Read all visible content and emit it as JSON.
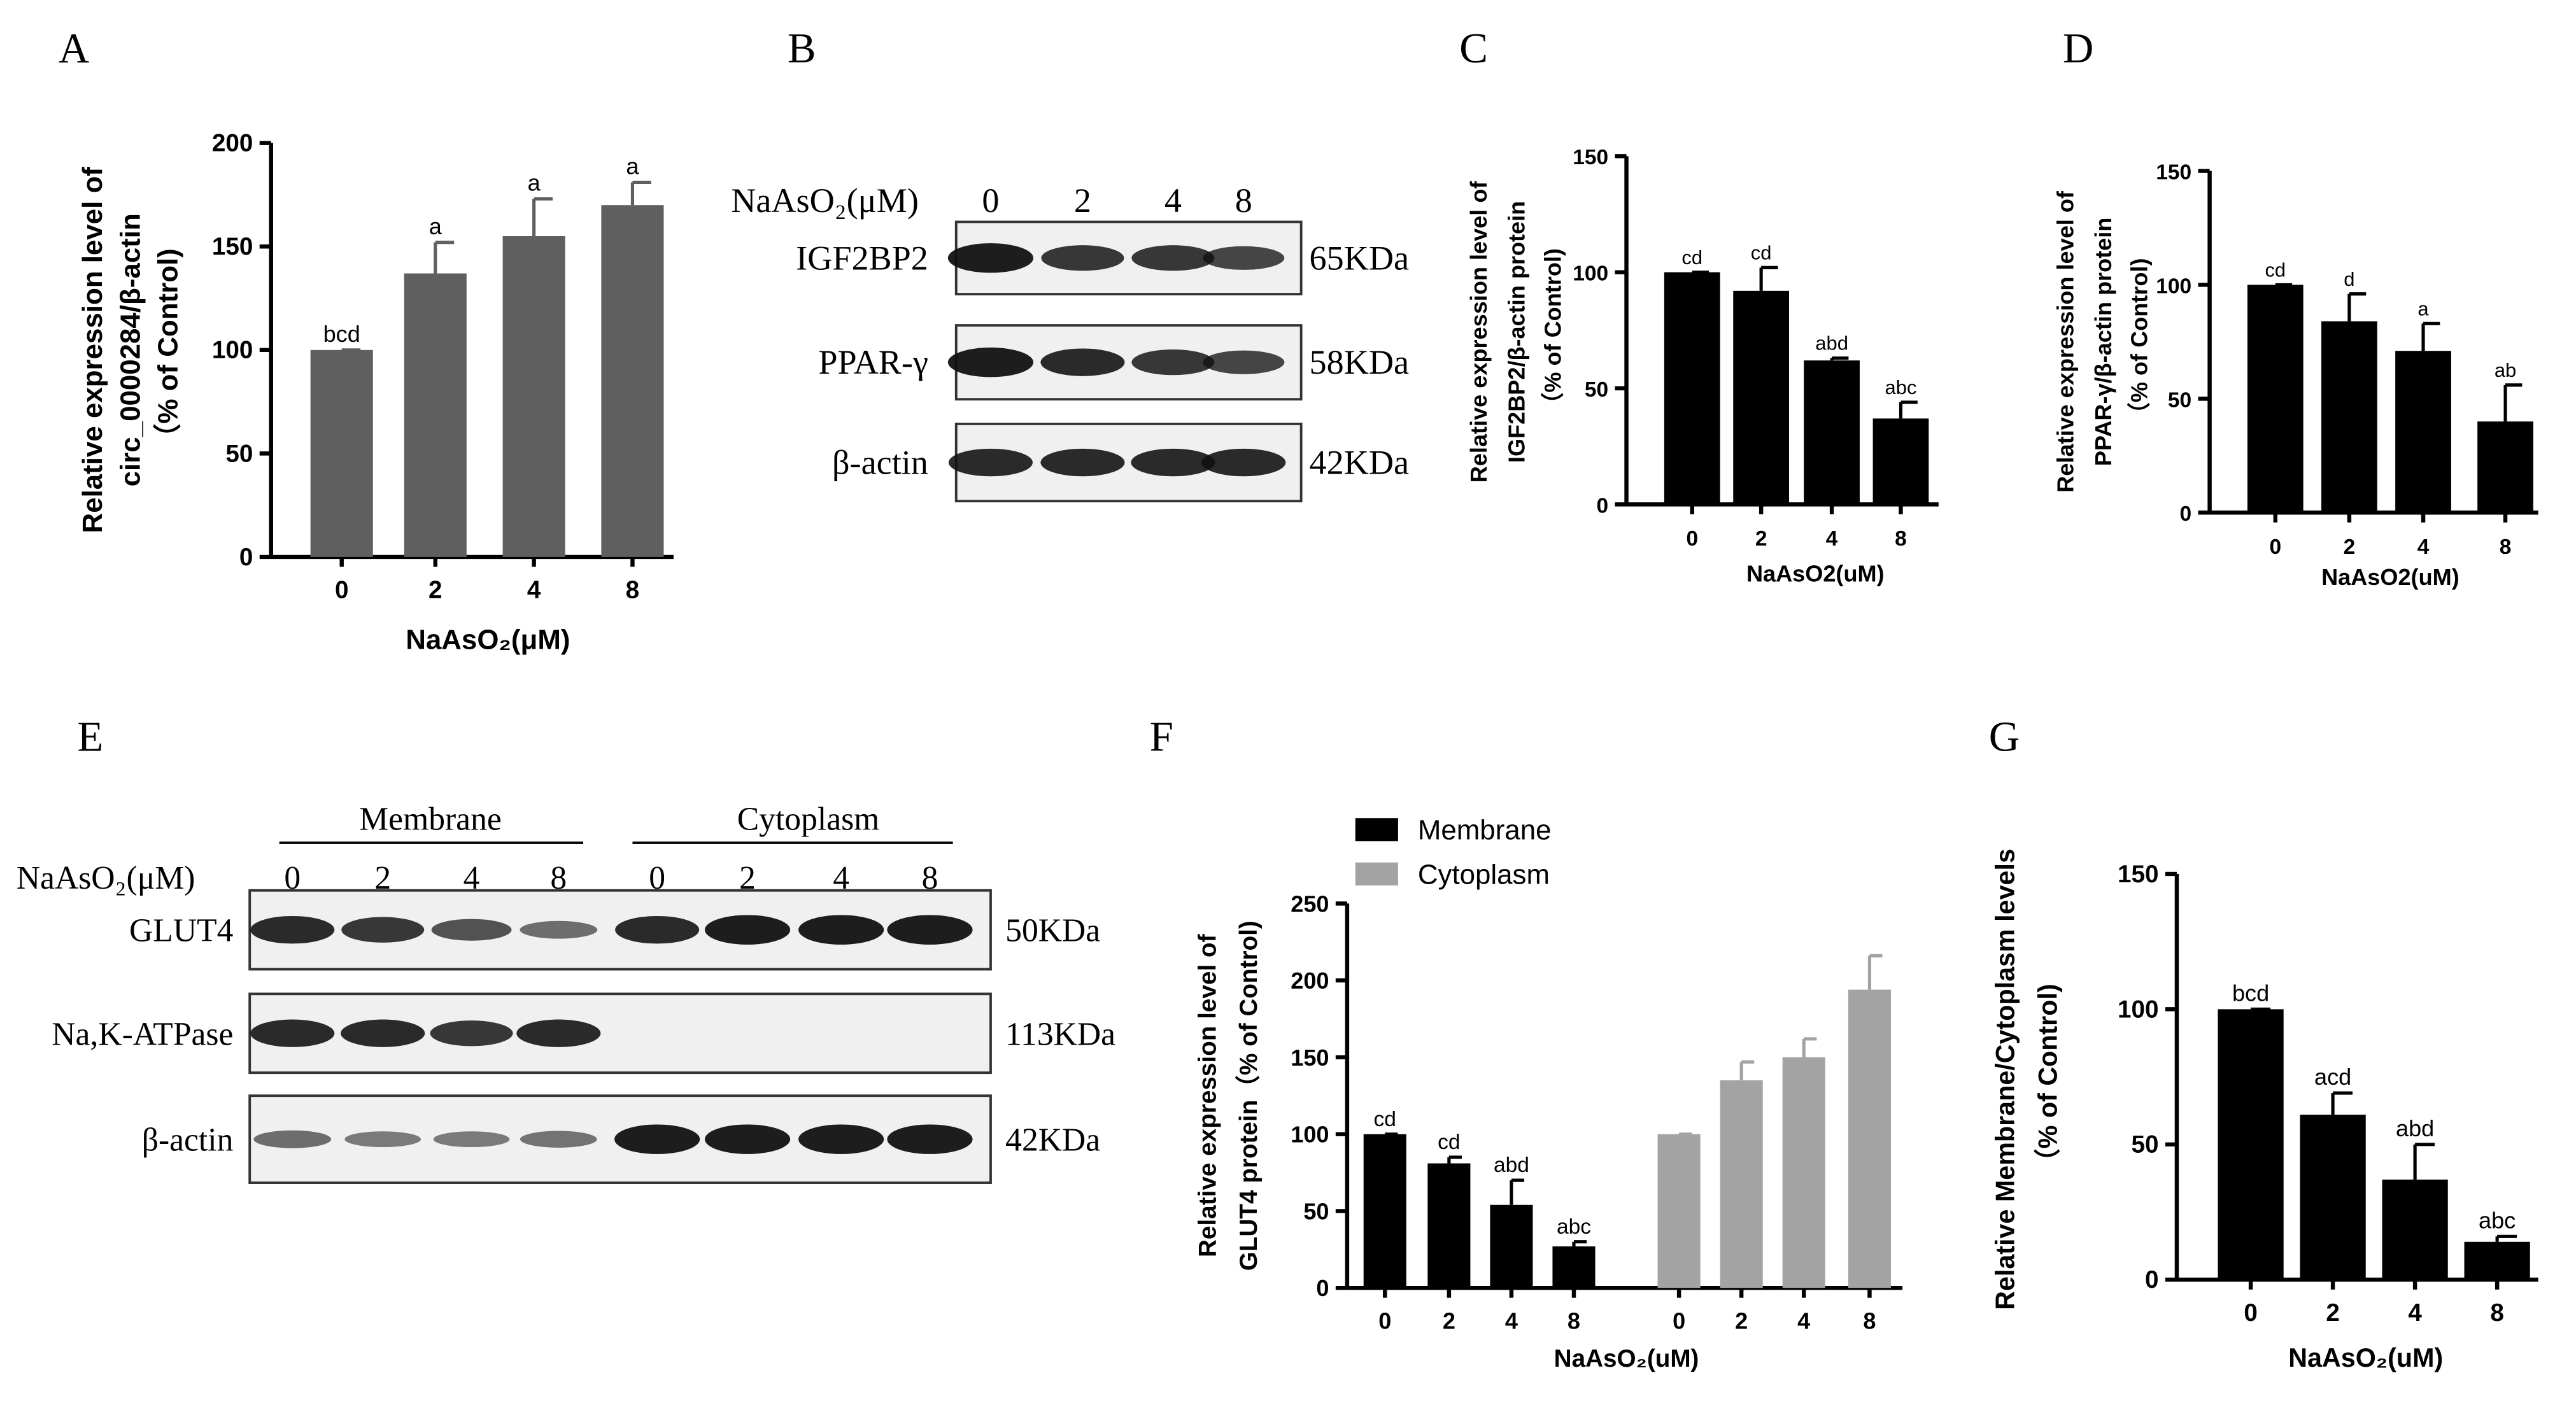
{
  "chart_data": [
    {
      "type": "bar",
      "panel_label": "A",
      "categories": [
        "0",
        "2",
        "4",
        "8"
      ],
      "values": [
        100,
        137,
        155,
        170
      ],
      "errors": [
        0,
        15,
        18,
        11
      ],
      "annotations": [
        "bcd",
        "a",
        "a",
        "a"
      ],
      "color": "#5f5f5f",
      "ylim": [
        0,
        200
      ],
      "yticks": [
        0,
        50,
        100,
        150,
        200
      ],
      "xlabel": "NaAsO₂(μM)",
      "ylabel": [
        "Relative expression level of",
        "circ_0000284/β-actin",
        "（% of Control)"
      ]
    },
    {
      "type": "bar",
      "panel_label": "C",
      "categories": [
        "0",
        "2",
        "4",
        "8"
      ],
      "values": [
        100,
        92,
        62,
        37
      ],
      "errors": [
        0,
        10,
        1,
        7
      ],
      "annotations": [
        "cd",
        "cd",
        "abd",
        "abc"
      ],
      "color": "#000000",
      "ylim": [
        0,
        150
      ],
      "yticks": [
        0,
        50,
        100,
        150
      ],
      "xlabel": "NaAsO2(uM)",
      "ylabel": [
        "Relative expression level of",
        "IGF2BP2/β-actin protein",
        "（% of Control)"
      ]
    },
    {
      "type": "bar",
      "panel_label": "D",
      "categories": [
        "0",
        "2",
        "4",
        "8"
      ],
      "values": [
        100,
        84,
        71,
        40
      ],
      "errors": [
        0,
        12,
        12,
        16
      ],
      "annotations": [
        "cd",
        "d",
        "a",
        "ab"
      ],
      "color": "#000000",
      "ylim": [
        0,
        150
      ],
      "yticks": [
        0,
        50,
        100,
        150
      ],
      "xlabel": "NaAsO2(uM)",
      "ylabel": [
        "Relative expression level of",
        "PPAR-γ/β-actin protein",
        "（% of Control)"
      ]
    },
    {
      "type": "bar",
      "panel_label": "F",
      "categories": [
        "0",
        "2",
        "4",
        "8"
      ],
      "series": [
        {
          "name": "Membrane",
          "color": "#000000",
          "values": [
            100,
            81,
            54,
            27
          ],
          "errors": [
            0,
            4,
            16,
            3
          ],
          "annotations": [
            "cd",
            "cd",
            "abd",
            "abc"
          ]
        },
        {
          "name": "Cytoplasm",
          "color": "#a3a3a3",
          "values": [
            100,
            135,
            150,
            194
          ],
          "errors": [
            0,
            12,
            12,
            22
          ]
        }
      ],
      "ylim": [
        0,
        250
      ],
      "yticks": [
        0,
        50,
        100,
        150,
        200,
        250
      ],
      "xlabel": "NaAsO₂(uM)",
      "ylabel": [
        "Relative expression level of",
        "GLUT4 protein（% of Control)"
      ]
    },
    {
      "type": "bar",
      "panel_label": "G",
      "categories": [
        "0",
        "2",
        "4",
        "8"
      ],
      "values": [
        100,
        61,
        37,
        14
      ],
      "errors": [
        0,
        8,
        13,
        2
      ],
      "annotations": [
        "bcd",
        "acd",
        "abd",
        "abc"
      ],
      "color": "#000000",
      "ylim": [
        0,
        150
      ],
      "yticks": [
        0,
        50,
        100,
        150
      ],
      "xlabel": "NaAsO₂(uM)",
      "ylabel": [
        "Relative Membrane/Cytoplasm levels",
        "（% of Control)"
      ]
    }
  ],
  "blots": [
    {
      "panel_label": "B",
      "header": "NaAsO₂(μM)",
      "lanes": [
        "0",
        "2",
        "4",
        "8"
      ],
      "rows": [
        {
          "name": "IGF2BP2",
          "size": "65KDa"
        },
        {
          "name": "PPAR-γ",
          "size": "58KDa"
        },
        {
          "name": "β-actin",
          "size": "42KDa"
        }
      ]
    },
    {
      "panel_label": "E",
      "header": "NaAsO₂(μM)",
      "groups": [
        "Membrane",
        "Cytoplasm"
      ],
      "lanes": [
        "0",
        "2",
        "4",
        "8",
        "0",
        "2",
        "4",
        "8"
      ],
      "rows": [
        {
          "name": "GLUT4",
          "size": "50KDa"
        },
        {
          "name": "Na,K-ATPase",
          "size": "113KDa"
        },
        {
          "name": "β-actin",
          "size": "42KDa"
        }
      ]
    }
  ]
}
